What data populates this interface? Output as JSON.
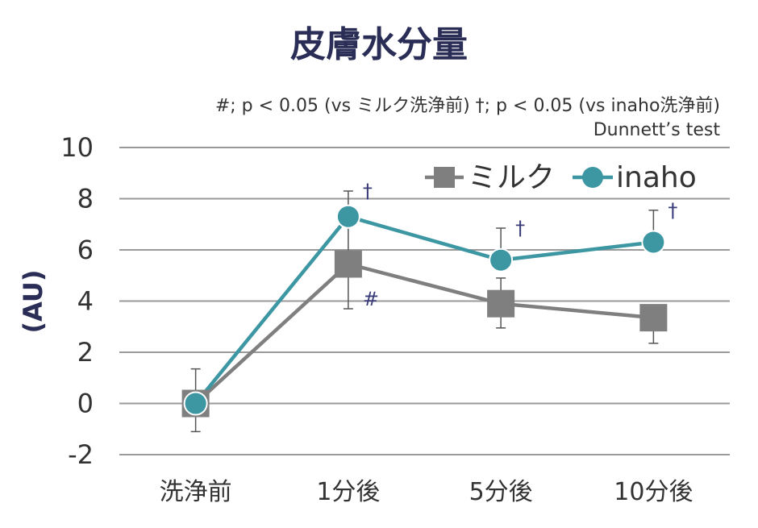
{
  "chart_data": {
    "type": "line",
    "title": "皮膚水分量",
    "ylabel": "(AU)",
    "xlabel": "",
    "note_line1": "#; p < 0.05 (vs ミルク洗浄前)  †; p < 0.05 (vs inaho洗浄前)",
    "note_line2": "Dunnett’s test",
    "categories": [
      "洗浄前",
      "1分後",
      "5分後",
      "10分後"
    ],
    "ylim": [
      -2,
      10
    ],
    "yticks": [
      "-2",
      "0",
      "2",
      "4",
      "6",
      "8",
      "10"
    ],
    "grid": true,
    "legend_position": "top-right",
    "series": [
      {
        "name": "ミルク",
        "marker": "square",
        "color": "#7f7f7f",
        "values": [
          0,
          5.45,
          3.9,
          3.35
        ],
        "error_high": [
          null,
          1.75,
          1.0,
          null
        ],
        "error_low": [
          null,
          1.75,
          0.95,
          1.0
        ],
        "significance": [
          "",
          "#",
          "",
          ""
        ]
      },
      {
        "name": "inaho",
        "marker": "circle",
        "color": "#3d97a3",
        "values": [
          0,
          7.3,
          5.6,
          6.3
        ],
        "error_high": [
          1.35,
          1.0,
          1.25,
          1.25
        ],
        "error_low": [
          1.1,
          null,
          null,
          null
        ],
        "significance": [
          "",
          "†",
          "†",
          "†"
        ]
      }
    ]
  }
}
